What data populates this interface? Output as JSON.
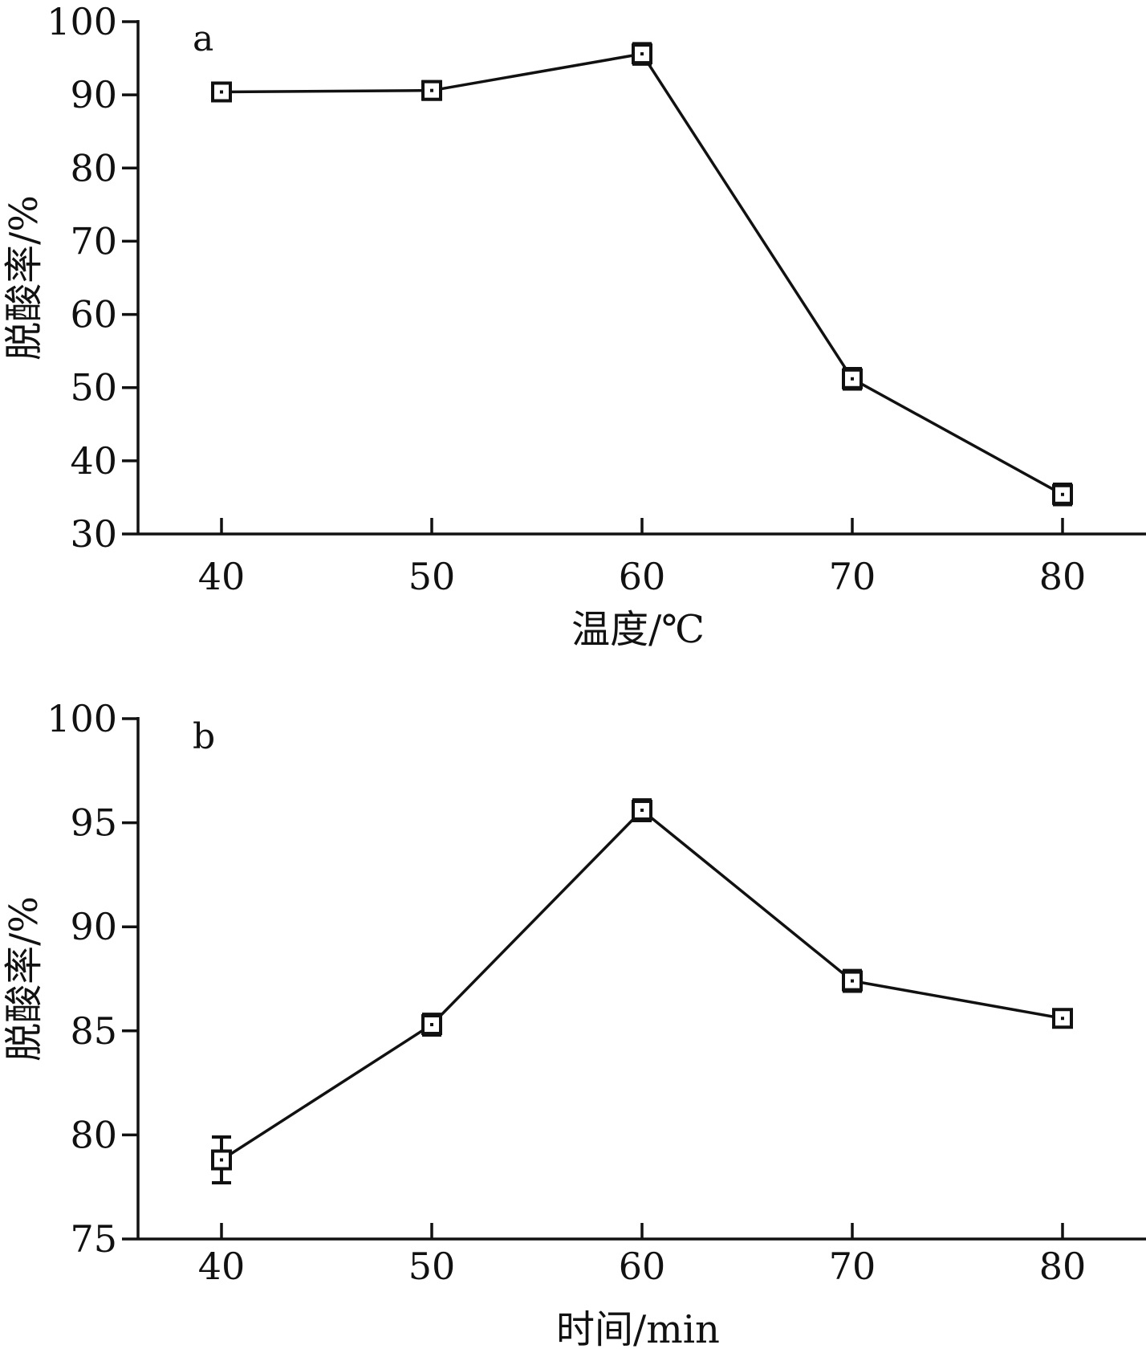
{
  "chart_data": [
    {
      "type": "line",
      "panel_label": "a",
      "xlabel": "温度/℃",
      "ylabel": "脱酸率/%",
      "x": [
        40,
        50,
        60,
        70,
        80
      ],
      "xticks": [
        "40",
        "50",
        "60",
        "70",
        "80"
      ],
      "ylim": [
        30,
        100
      ],
      "yticks": [
        "30",
        "40",
        "50",
        "60",
        "70",
        "80",
        "90",
        "100"
      ],
      "series": [
        {
          "values": [
            90.4,
            90.6,
            95.6,
            51.2,
            35.4
          ],
          "errors": [
            1.0,
            1.2,
            1.4,
            1.4,
            1.4
          ]
        }
      ],
      "grid": false
    },
    {
      "type": "line",
      "panel_label": "b",
      "xlabel": "时间/min",
      "ylabel": "脱酸率/%",
      "x": [
        40,
        50,
        60,
        70,
        80
      ],
      "xticks": [
        "40",
        "50",
        "60",
        "70",
        "80"
      ],
      "ylim": [
        75,
        100
      ],
      "yticks": [
        "75",
        "80",
        "85",
        "90",
        "95",
        "100"
      ],
      "series": [
        {
          "values": [
            78.8,
            85.3,
            95.6,
            87.4,
            85.6
          ],
          "errors": [
            1.1,
            0.5,
            0.5,
            0.5,
            0.4
          ]
        }
      ],
      "grid": false
    }
  ]
}
